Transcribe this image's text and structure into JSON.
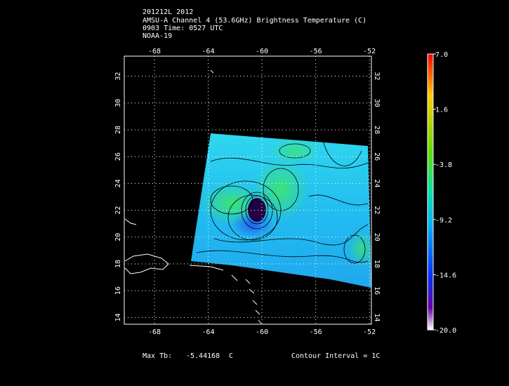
{
  "header": {
    "line1": "201212L 2012",
    "line2": "AMSU-A Channel 4 (53.6GHz) Brightness Temperature (C)",
    "line3": "0903 Time: 0527 UTC",
    "line4": "NOAA-19"
  },
  "map": {
    "lon_labels": [
      "-68",
      "-64",
      "-60",
      "-56",
      "-52"
    ],
    "lat_labels": [
      "14",
      "16",
      "18",
      "20",
      "22",
      "24",
      "26",
      "28",
      "30",
      "32"
    ],
    "colors": {
      "frame": "#ffffff",
      "coast": "#ffffff",
      "contour": "#000000",
      "grid": "#ffffff",
      "background": "#000000"
    }
  },
  "colorbar": {
    "labels": [
      "7.0",
      "1.6",
      "-3.8",
      "-9.2",
      "-14.6",
      "-20.0"
    ],
    "stops": [
      "#ff0000",
      "#ffcc00",
      "#66dd00",
      "#00e6aa",
      "#00b0ff",
      "#0033ff",
      "#6600aa",
      "#ffffff"
    ]
  },
  "footer": {
    "max_label": "Max Tb:",
    "max_value": "-5.44168",
    "max_unit": "C",
    "contour_label": "Contour Interval = 1C"
  }
}
